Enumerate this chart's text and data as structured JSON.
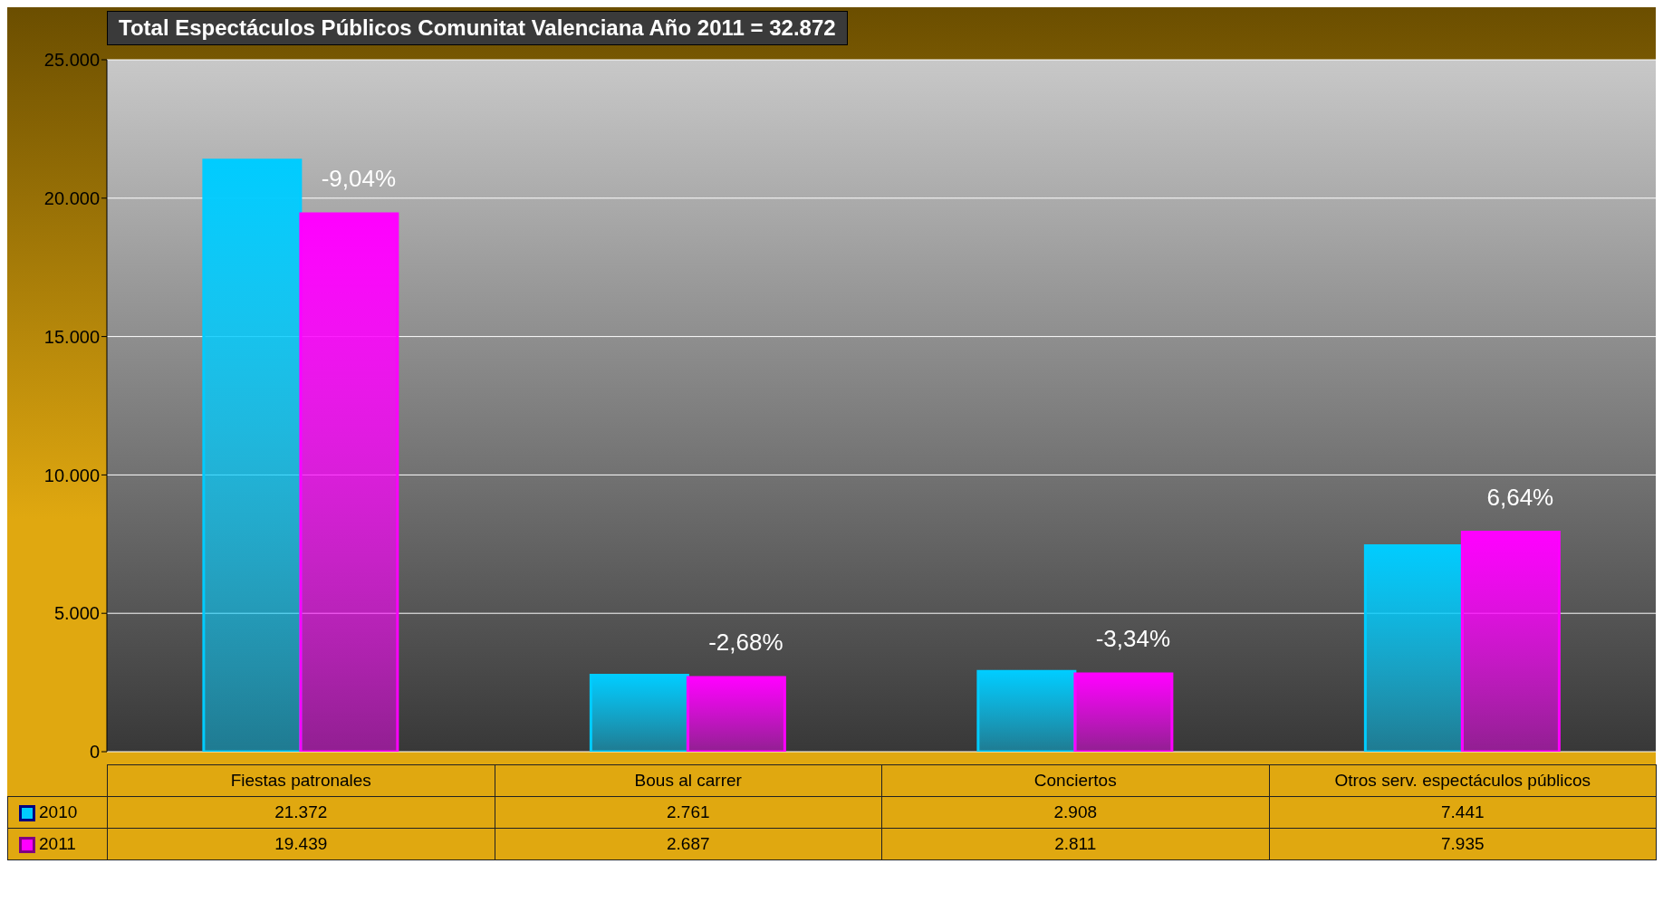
{
  "chart_data": {
    "type": "bar",
    "title": "Total Espectáculos Públicos Comunitat Valenciana Año 2011 = 32.872",
    "categories": [
      "Fiestas patronales",
      "Bous al carrer",
      "Conciertos",
      "Otros serv. espectáculos públicos"
    ],
    "series": [
      {
        "name": "2010",
        "color": "#00ccff",
        "values": [
          21372,
          2761,
          2908,
          7441
        ],
        "value_labels": [
          "21.372",
          "2.761",
          "2.908",
          "7.441"
        ]
      },
      {
        "name": "2011",
        "color": "#ff00ff",
        "values": [
          19439,
          2687,
          2811,
          7935
        ],
        "value_labels": [
          "19.439",
          "2.687",
          "2.811",
          "7.935"
        ]
      }
    ],
    "ylim": [
      0,
      25000
    ],
    "yticks": [
      {
        "value": 0,
        "label": "0"
      },
      {
        "value": 5000,
        "label": "5.000"
      },
      {
        "value": 10000,
        "label": "10.000"
      },
      {
        "value": 15000,
        "label": "15.000"
      },
      {
        "value": 20000,
        "label": "20.000"
      },
      {
        "value": 25000,
        "label": "25.000"
      }
    ],
    "grid": "y",
    "legend": "bottom",
    "annotations": [
      {
        "text": "-9,04%",
        "x": "Fiestas patronales",
        "y": 19439
      },
      {
        "text": "-2,68%",
        "x": "Bous al carrer",
        "y": 2687
      },
      {
        "text": "-3,34%",
        "x": "Conciertos",
        "y": 2811
      },
      {
        "text": "6,64%",
        "x": "Otros serv. espectáculos públicos",
        "y": 7935
      }
    ]
  }
}
